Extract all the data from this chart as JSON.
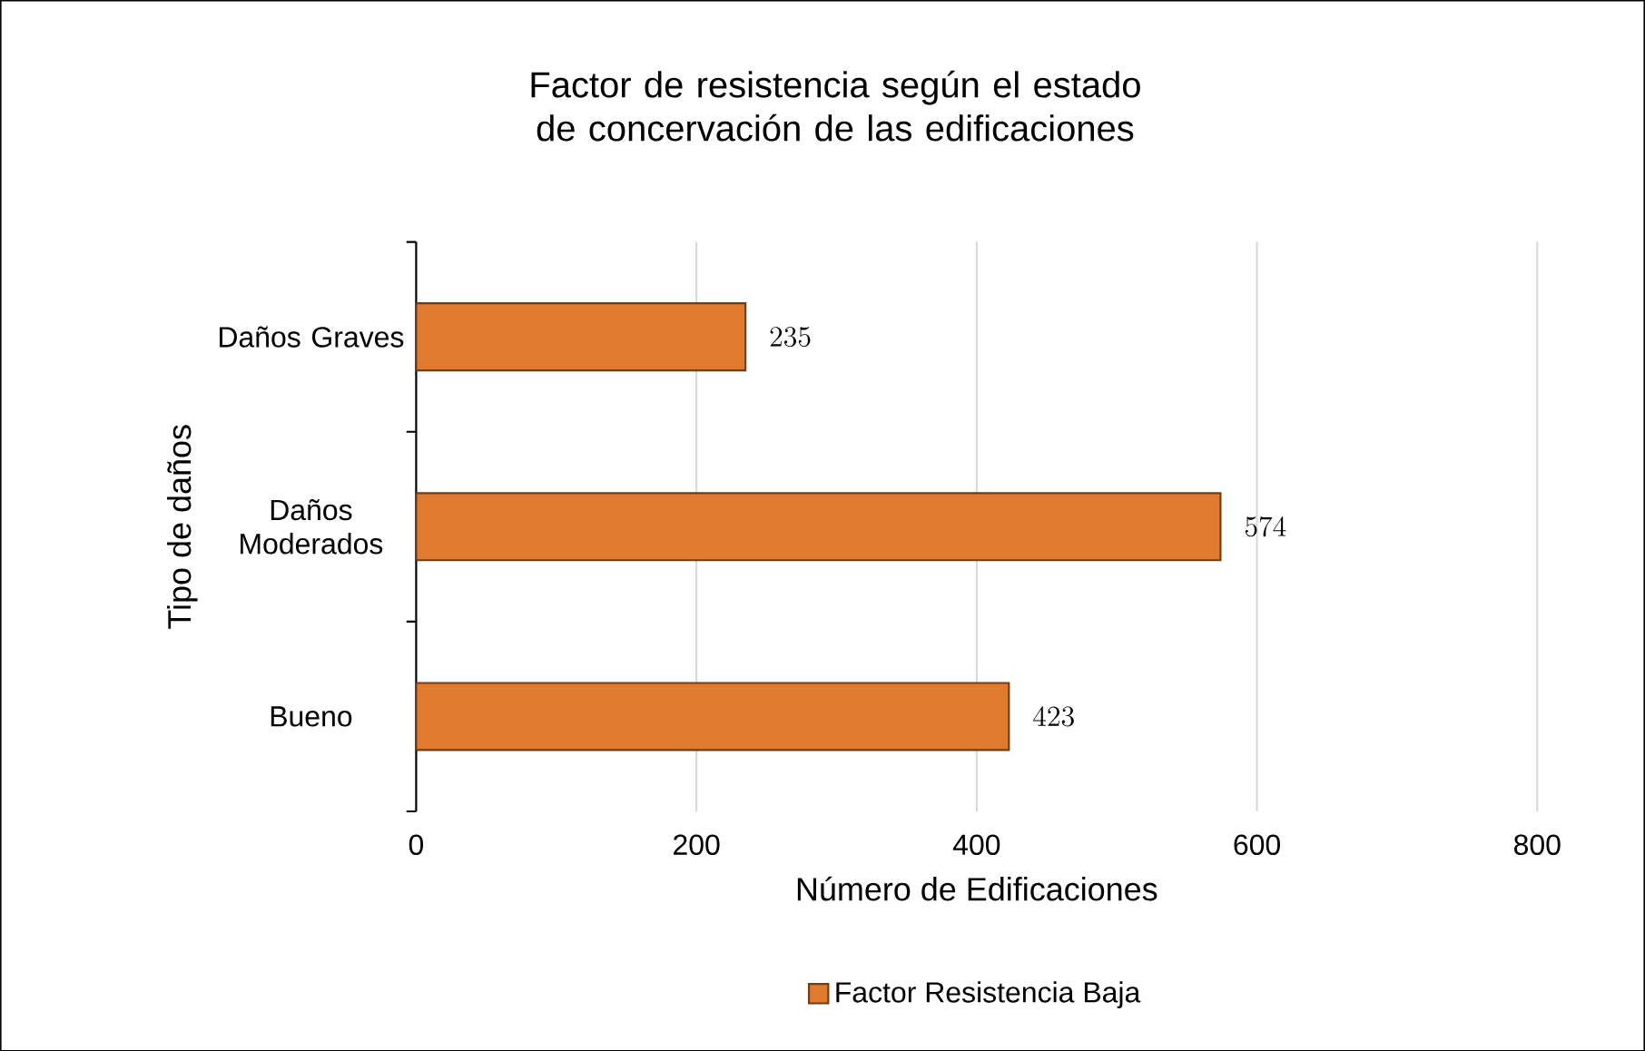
{
  "chart_data": {
    "type": "bar",
    "orientation": "horizontal",
    "title": "Factor de resistencia según el estado de concervación de las edificaciones",
    "xlabel": "Número de Edificaciones",
    "ylabel": "Tipo de daños",
    "categories": [
      "Daños Graves",
      "Daños Moderados",
      "Bueno"
    ],
    "series": [
      {
        "name": "Factor Resistencia Baja",
        "color": "#e07a2e",
        "values": [
          235,
          574,
          423
        ]
      }
    ],
    "xlim": [
      0,
      800
    ],
    "xticks": [
      0,
      200,
      400,
      600,
      800
    ],
    "grid": "x",
    "legend": "bottom",
    "data_labels": true
  }
}
